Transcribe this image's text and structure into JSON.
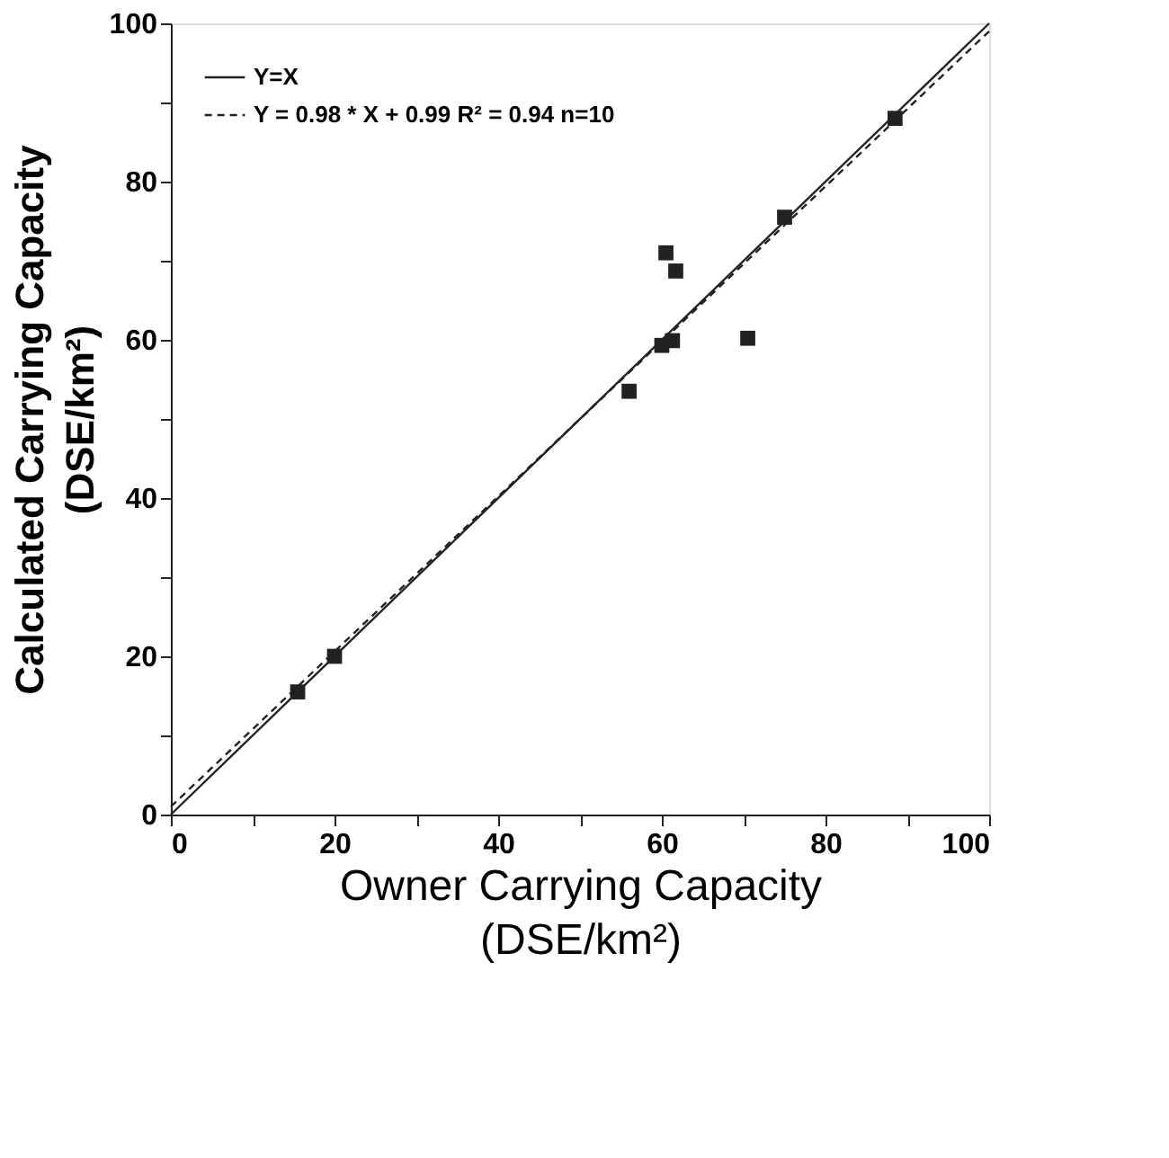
{
  "chart_data": {
    "type": "scatter",
    "xlabel": "Owner Carrying Capacity\n(DSE/km²)",
    "ylabel": "Calculated Carrying Capacity\n(DSE/km²)",
    "xlim": [
      0,
      100
    ],
    "ylim": [
      0,
      100
    ],
    "xticks": [
      0,
      {
        "value": 10,
        "label": null
      },
      20,
      {
        "value": 30,
        "label": null
      },
      40,
      {
        "value": 50,
        "label": null
      },
      60,
      {
        "value": 70,
        "label": null
      },
      80,
      {
        "value": 90,
        "label": null
      },
      100
    ],
    "yticks": [
      0,
      {
        "value": 10,
        "label": null
      },
      20,
      {
        "value": 30,
        "label": null
      },
      40,
      {
        "value": 50,
        "label": null
      },
      60,
      {
        "value": 70,
        "label": null
      },
      80,
      {
        "value": 90,
        "label": null
      },
      100
    ],
    "marker": "square",
    "legend": "top left",
    "grid": false,
    "series": [
      {
        "color": "#222222",
        "x": [
          15.5,
          20,
          56,
          60,
          61.3,
          60.5,
          61.7,
          70.5,
          75,
          88.5
        ],
        "values": [
          15.5,
          20,
          53.5,
          59.3,
          59.9,
          71,
          68.7,
          60.2,
          75.5,
          88
        ]
      },
      {
        "type": "line",
        "name": "Y=X",
        "color": "#222222",
        "line_style": "solid",
        "marker": "none",
        "x": [
          0,
          100
        ],
        "values": [
          0,
          100
        ]
      },
      {
        "type": "line",
        "name": "Y = 0.98 * X + 0.99  R² = 0.94  n=10",
        "color": "#222222",
        "line_style": "dashed",
        "marker": "none",
        "x": [
          0,
          100
        ],
        "values": [
          1,
          99
        ]
      }
    ]
  }
}
